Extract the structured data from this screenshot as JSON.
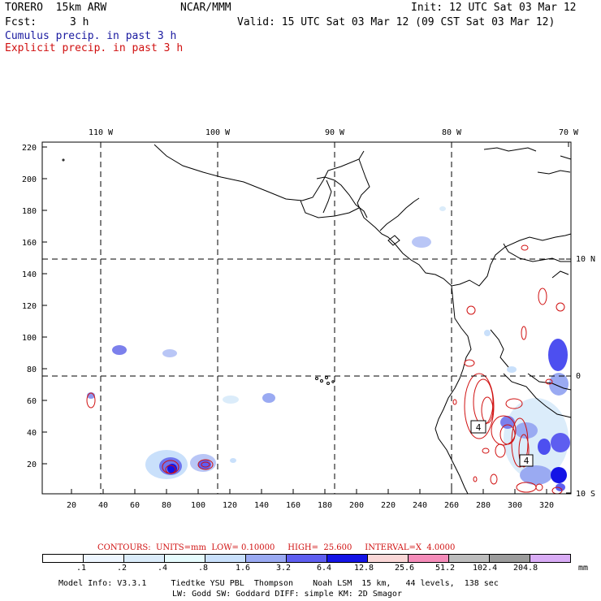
{
  "header": {
    "model": "TORERO  15km ARW",
    "org": "NCAR/MMM",
    "init": "Init: 12 UTC Sat 03 Mar 12",
    "fcst_label": "Fcst:",
    "fcst_value": "3 h",
    "valid": "Valid: 15 UTC Sat 03 Mar 12 (09 CST Sat 03 Mar 12)",
    "line_cumulus": "Cumulus precip. in past 3 h",
    "line_explicit": "Explicit precip. in past 3 h"
  },
  "colors": {
    "cumulus_text": "#1a1aa0",
    "explicit_text": "#d01010",
    "contour": "#d01010",
    "coast": "#000000"
  },
  "axes": {
    "top_lon": [
      "110 W",
      "100 W",
      "90 W",
      "80 W",
      "70 W"
    ],
    "right_lat": [
      "10 N",
      "0",
      "10 S"
    ],
    "left_y": [
      "220",
      "200",
      "180",
      "160",
      "140",
      "120",
      "100",
      "80",
      "60",
      "40",
      "20"
    ],
    "bottom_x": [
      "20",
      "40",
      "60",
      "80",
      "100",
      "120",
      "140",
      "160",
      "180",
      "200",
      "220",
      "240",
      "260",
      "280",
      "300",
      "320"
    ]
  },
  "contours_info": {
    "text": "CONTOURS:  UNITS=mm  LOW= 0.10000     HIGH=  25.600     INTERVAL=X  4.0000"
  },
  "colorbar": {
    "colors": [
      "#ffffff",
      "#eef6ff",
      "#dbecfa",
      "#e6fbfd",
      "#c9e0fb",
      "#9aaaf2",
      "#5e5ef0",
      "#1414e6",
      "#fad7d7",
      "#f48cb9",
      "#bdbdbd",
      "#9c9c9c",
      "#d9acf5"
    ],
    "labels": [
      ".1",
      ".2",
      ".4",
      ".8",
      "1.6",
      "3.2",
      "6.4",
      "12.8",
      "25.6",
      "51.2",
      "102.4",
      "204.8"
    ],
    "units": "mm"
  },
  "footer": {
    "line1": "Model Info: V3.3.1     Tiedtke YSU PBL  Thompson    Noah LSM  15 km,   44 levels,  138 sec",
    "line2": "LW: Godd SW: Goddard DIFF: simple KM: 2D Smagor"
  }
}
